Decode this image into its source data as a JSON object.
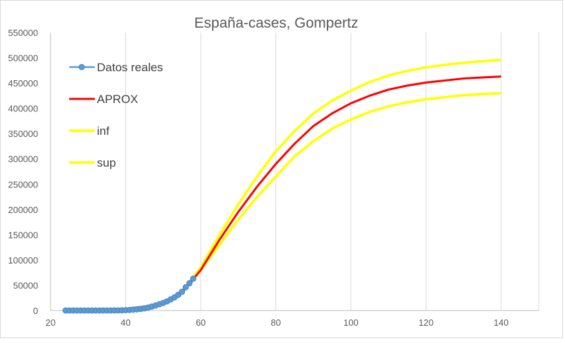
{
  "chart_data": {
    "type": "line",
    "title": "España-cases, Gompertz",
    "xlabel": "",
    "ylabel": "",
    "xlim": [
      20,
      150
    ],
    "ylim": [
      0,
      550000
    ],
    "x_ticks": [
      "20",
      "40",
      "60",
      "80",
      "100",
      "120",
      "140"
    ],
    "y_ticks": [
      "0",
      "50000",
      "100000",
      "150000",
      "200000",
      "250000",
      "300000",
      "350000",
      "400000",
      "450000",
      "500000",
      "550000"
    ],
    "grid": {
      "vertical": true,
      "horizontal": false
    },
    "legend_position": "top-left",
    "series": [
      {
        "name": "Datos reales",
        "color": "#5b9bd5",
        "marker": "circle",
        "x": [
          24,
          25,
          26,
          27,
          28,
          29,
          30,
          31,
          32,
          33,
          34,
          35,
          36,
          37,
          38,
          39,
          40,
          41,
          42,
          43,
          44,
          45,
          46,
          47,
          48,
          49,
          50,
          51,
          52,
          53,
          54,
          55,
          56,
          57,
          58
        ],
        "y": [
          0,
          0,
          0,
          0,
          0,
          0,
          0,
          0,
          0,
          0,
          0,
          0,
          0,
          100,
          200,
          400,
          700,
          1100,
          1700,
          2300,
          3000,
          4200,
          5800,
          7800,
          10000,
          12500,
          15000,
          18000,
          22000,
          26000,
          31000,
          37000,
          46000,
          54000,
          63000
        ]
      },
      {
        "name": "APROX",
        "color": "#ff0000",
        "x": [
          24,
          30,
          35,
          40,
          45,
          50,
          55,
          60,
          65,
          70,
          75,
          80,
          85,
          90,
          95,
          100,
          105,
          110,
          115,
          120,
          125,
          130,
          135,
          140
        ],
        "y": [
          700,
          1200,
          2000,
          3500,
          7500,
          15000,
          35000,
          80000,
          140000,
          195000,
          245000,
          290000,
          330000,
          365000,
          390000,
          410000,
          425000,
          437000,
          445000,
          451000,
          455000,
          459000,
          461000,
          463000
        ]
      },
      {
        "name": "inf",
        "color": "#ffff00",
        "x": [
          24,
          30,
          35,
          40,
          45,
          50,
          55,
          60,
          65,
          70,
          75,
          80,
          85,
          90,
          95,
          100,
          105,
          110,
          115,
          120,
          125,
          130,
          135,
          140
        ],
        "y": [
          700,
          1200,
          2000,
          3500,
          7500,
          15000,
          35000,
          80000,
          130000,
          180000,
          225000,
          265000,
          305000,
          335000,
          360000,
          378000,
          393000,
          404000,
          412000,
          418000,
          422000,
          426000,
          428000,
          430000
        ]
      },
      {
        "name": "sup",
        "color": "#ffff00",
        "x": [
          24,
          30,
          35,
          40,
          45,
          50,
          55,
          60,
          65,
          70,
          75,
          80,
          85,
          90,
          95,
          100,
          105,
          110,
          115,
          120,
          125,
          130,
          135,
          140
        ],
        "y": [
          700,
          1200,
          2000,
          3500,
          7500,
          15000,
          38000,
          85000,
          150000,
          210000,
          265000,
          315000,
          355000,
          390000,
          415000,
          435000,
          452000,
          465000,
          474000,
          481000,
          486000,
          490000,
          493000,
          496000
        ]
      }
    ]
  }
}
